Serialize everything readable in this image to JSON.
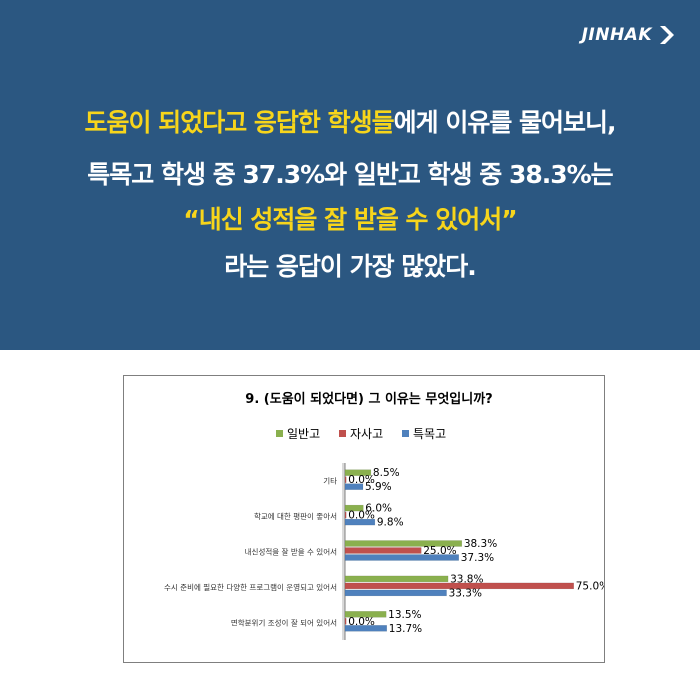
{
  "logo": {
    "text": "JINHAK"
  },
  "headline": {
    "line1_highlight": "도움이 되었다고 응답한 학생들",
    "line1_rest": "에게 이유를 물어보니,",
    "line2": "특목고 학생 중 37.3%와 일반고 학생 중 38.3%는",
    "line3": "“내신 성적을 잘 받을 수 있어서”",
    "line4": "라는 응답이 가장 많았다."
  },
  "colors": {
    "header_bg": "#2b5781",
    "highlight": "#f7d51b",
    "series": [
      "#8ab04e",
      "#c0504d",
      "#4f81bd"
    ]
  },
  "chart_data": {
    "type": "bar",
    "orientation": "horizontal",
    "title": "9. (도움이 되었다면) 그 이유는 무엇입니까?",
    "legend_position": "top",
    "value_suffix": "%",
    "categories": [
      "기타",
      "학교에 대한 평판이 좋아서",
      "내신성적을 잘 받을 수 있어서",
      "수시 준비에 필요한 다양한 프로그램이 운영되고 있어서",
      "면학분위기 조성이 잘 되어 있어서"
    ],
    "series": [
      {
        "name": "일반고",
        "color": "#8ab04e",
        "values": [
          8.5,
          6.0,
          38.3,
          33.8,
          13.5
        ]
      },
      {
        "name": "자사고",
        "color": "#c0504d",
        "values": [
          0.0,
          0.0,
          25.0,
          75.0,
          0.0
        ]
      },
      {
        "name": "특목고",
        "color": "#4f81bd",
        "values": [
          5.9,
          9.8,
          37.3,
          33.3,
          13.7
        ]
      }
    ],
    "xlim": [
      0,
      80
    ],
    "grid": false
  }
}
